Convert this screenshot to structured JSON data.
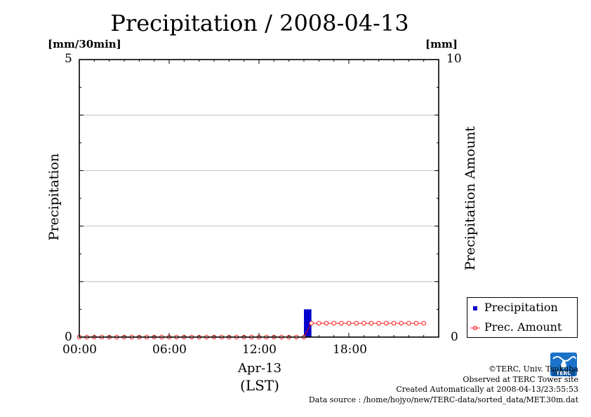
{
  "chart_data": {
    "type": "bar+line",
    "title": "Precipitation / 2008-04-13",
    "y_left_unit": "[mm/30min]",
    "y_right_unit": "[mm]",
    "ylabel_left": "Precipitation",
    "ylabel_right": "Precipitation Amount",
    "ylim_left": [
      0,
      5
    ],
    "ylim_right": [
      0,
      10
    ],
    "y_left_ticks": [
      "0",
      "5"
    ],
    "y_right_ticks": [
      "0",
      "10"
    ],
    "x_ticks": [
      "00:00",
      "06:00",
      "12:00",
      "18:00"
    ],
    "x_tick_hours": [
      0,
      6,
      12,
      18
    ],
    "xlim_hours": [
      0,
      24
    ],
    "xlabel_line1": "Apr-13",
    "xlabel_line2": "(LST)",
    "grid_y_left": [
      1,
      2,
      3,
      4
    ],
    "series": [
      {
        "name": "Precipitation",
        "kind": "bar",
        "axis": "left",
        "color": "#0000cc",
        "x_hours": [
          15.0
        ],
        "values": [
          0.5
        ]
      },
      {
        "name": "Prec. Amount",
        "kind": "line",
        "axis": "right",
        "color": "#ff0000",
        "x_hours": [
          0,
          0.5,
          1,
          1.5,
          2,
          2.5,
          3,
          3.5,
          4,
          4.5,
          5,
          5.5,
          6,
          6.5,
          7,
          7.5,
          8,
          8.5,
          9,
          9.5,
          10,
          10.5,
          11,
          11.5,
          12,
          12.5,
          13,
          13.5,
          14,
          14.5,
          15,
          15.5,
          16,
          16.5,
          17,
          17.5,
          18,
          18.5,
          19,
          19.5,
          20,
          20.5,
          21,
          21.5,
          22,
          22.5,
          23
        ],
        "values": [
          0,
          0,
          0,
          0,
          0,
          0,
          0,
          0,
          0,
          0,
          0,
          0,
          0,
          0,
          0,
          0,
          0,
          0,
          0,
          0,
          0,
          0,
          0,
          0,
          0,
          0,
          0,
          0,
          0,
          0,
          0,
          0.5,
          0.5,
          0.5,
          0.5,
          0.5,
          0.5,
          0.5,
          0.5,
          0.5,
          0.5,
          0.5,
          0.5,
          0.5,
          0.5,
          0.5,
          0.5
        ]
      }
    ],
    "legend_position": "bottom-right"
  },
  "credits": {
    "copyright": "©TERC, Univ. Tsukuba",
    "observed": "Observed at TERC Tower site",
    "created": "Created Automatically at 2008-04-13/23:55:53",
    "source": "Data source : /home/hojyo/new/TERC-data/sorted_data/MET.30m.dat"
  },
  "logo_text": "TERC",
  "colors": {
    "bar": "#0000cc",
    "line": "#ff0000",
    "grid": "#b0b0b0",
    "logo": "#1a73c9"
  }
}
